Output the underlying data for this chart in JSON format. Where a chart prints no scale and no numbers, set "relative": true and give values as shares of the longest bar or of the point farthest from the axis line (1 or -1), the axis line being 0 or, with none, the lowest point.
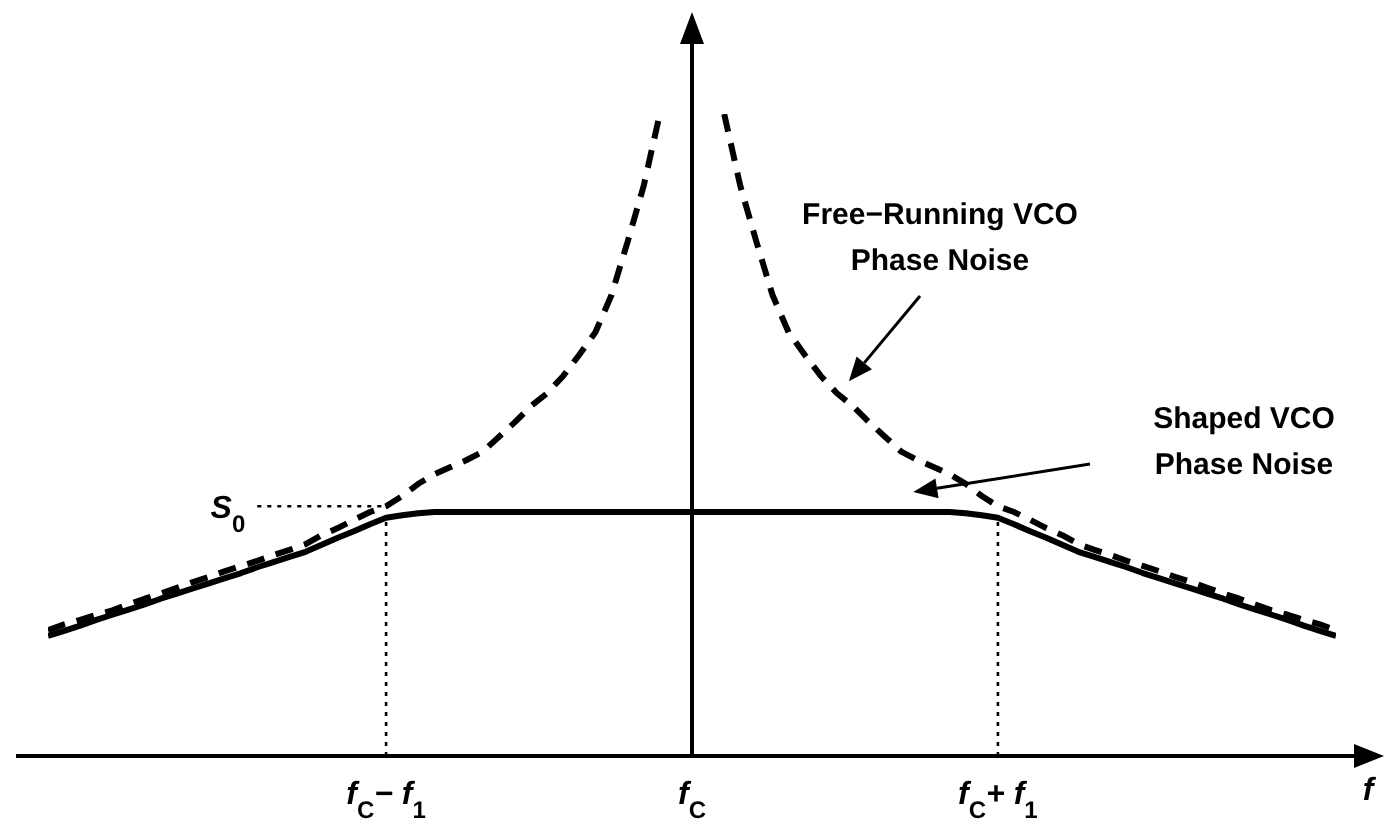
{
  "chart_data": {
    "type": "line",
    "relative": true,
    "xlabel": "f",
    "categories": [
      null,
      null,
      null,
      null,
      null,
      null,
      null,
      null,
      null,
      null,
      null,
      null,
      null,
      null,
      null,
      null,
      null,
      null,
      null,
      null,
      null,
      "f$_{C}$− f$_{1}$",
      null,
      null,
      null,
      null,
      null,
      null,
      null,
      null,
      null,
      null,
      null,
      null,
      null,
      null,
      null,
      null,
      null,
      null,
      "f$_{C}$",
      null,
      null,
      null,
      null,
      null,
      null,
      null,
      null,
      null,
      null,
      null,
      null,
      null,
      null,
      null,
      null,
      null,
      null,
      "f$_{C}$+ f$_{1}$",
      null,
      null,
      null,
      null,
      null,
      null,
      null,
      null,
      null,
      null,
      null,
      null,
      null,
      null,
      null,
      null,
      null,
      null,
      null,
      null,
      null
    ],
    "series": [
      {
        "name": "Free−Running VCO Phase Noise",
        "color": "#000000",
        "line_style": "dashed",
        "values": [
          0.196,
          0.205,
          0.212,
          0.22,
          0.227,
          0.236,
          0.245,
          0.253,
          0.262,
          0.271,
          0.279,
          0.288,
          0.296,
          0.304,
          0.313,
          0.321,
          0.33,
          0.344,
          0.355,
          0.368,
          0.38,
          0.389,
          0.405,
          0.424,
          0.439,
          0.45,
          0.461,
          0.474,
          0.497,
          0.52,
          0.545,
          0.565,
          0.592,
          0.625,
          0.66,
          0.718,
          0.801,
          0.888,
          1,
          null,
          null,
          null,
          1,
          0.888,
          0.801,
          0.718,
          0.66,
          0.625,
          0.592,
          0.565,
          0.545,
          0.52,
          0.497,
          0.474,
          0.461,
          0.45,
          0.439,
          0.424,
          0.405,
          0.389,
          0.38,
          0.368,
          0.355,
          0.344,
          0.33,
          0.321,
          0.313,
          0.304,
          0.296,
          0.288,
          0.279,
          0.271,
          0.262,
          0.253,
          0.245,
          0.236,
          0.227,
          0.22,
          0.212,
          0.205,
          0.196
        ]
      },
      {
        "name": "Shaped VCO Phase Noise",
        "color": "#000000",
        "line_style": "solid",
        "values": [
          0.187,
          0.195,
          0.203,
          0.212,
          0.22,
          0.228,
          0.236,
          0.245,
          0.253,
          0.261,
          0.269,
          0.277,
          0.285,
          0.294,
          0.302,
          0.31,
          0.318,
          0.329,
          0.34,
          0.35,
          0.361,
          0.371,
          0.375,
          0.378,
          0.38,
          0.38,
          0.38,
          0.38,
          0.38,
          0.38,
          0.38,
          0.38,
          0.38,
          0.38,
          0.38,
          0.38,
          0.38,
          0.38,
          0.38,
          0.38,
          0.38,
          0.38,
          0.38,
          0.38,
          0.38,
          0.38,
          0.38,
          0.38,
          0.38,
          0.38,
          0.38,
          0.38,
          0.38,
          0.38,
          0.38,
          0.38,
          0.38,
          0.378,
          0.375,
          0.371,
          0.361,
          0.35,
          0.34,
          0.329,
          0.318,
          0.31,
          0.302,
          0.294,
          0.285,
          0.277,
          0.269,
          0.261,
          0.253,
          0.245,
          0.236,
          0.228,
          0.22,
          0.212,
          0.203,
          0.195,
          0.187
        ]
      }
    ],
    "ref_lines": [
      {
        "axis": "x",
        "value": "f$_{C}$− f$_{1}$",
        "line_style": "dotted",
        "color": "#000000"
      },
      {
        "axis": "x",
        "value": "f$_{C}$+ f$_{1}$",
        "line_style": "dotted",
        "color": "#000000"
      },
      {
        "axis": "y",
        "value": 0.389,
        "label": "S$_{0}$",
        "line_style": "dotted",
        "color": "#000000"
      }
    ]
  }
}
